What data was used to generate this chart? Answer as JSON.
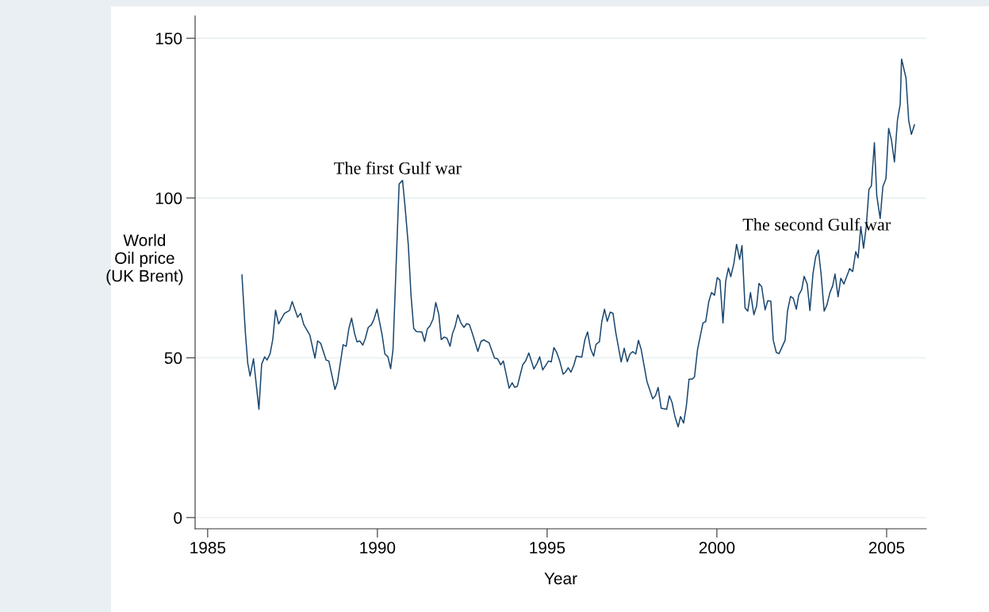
{
  "chart_data": {
    "type": "line",
    "xlabel": "Year",
    "ylabel": "World\nOil price\n(UK Brent)",
    "annotations": [
      "The first Gulf war",
      "The second Gulf war"
    ],
    "xlim": [
      1984.63,
      2006.17
    ],
    "xticks": [
      1985,
      1990,
      1995,
      2000,
      2005
    ],
    "ylim": [
      -3.5,
      157
    ],
    "yticks": [
      0,
      50,
      100,
      150
    ],
    "grid": "y",
    "series": [
      {
        "color": "#1a476f",
        "x": [
          1986.01,
          1986.11,
          1986.18,
          1986.25,
          1986.35,
          1986.51,
          1986.59,
          1986.68,
          1986.75,
          1986.84,
          1986.92,
          1987.0,
          1987.09,
          1987.26,
          1987.41,
          1987.49,
          1987.65,
          1987.74,
          1987.83,
          1988.01,
          1988.16,
          1988.24,
          1988.33,
          1988.49,
          1988.57,
          1988.75,
          1988.82,
          1988.99,
          1989.08,
          1989.16,
          1989.24,
          1989.33,
          1989.4,
          1989.48,
          1989.57,
          1989.64,
          1989.73,
          1989.82,
          1989.9,
          1989.99,
          1990.14,
          1990.22,
          1990.31,
          1990.39,
          1990.46,
          1990.64,
          1990.74,
          1990.81,
          1990.91,
          1990.99,
          1991.07,
          1991.15,
          1991.31,
          1991.39,
          1991.47,
          1991.55,
          1991.64,
          1991.72,
          1991.81,
          1991.88,
          1991.97,
          1992.05,
          1992.14,
          1992.21,
          1992.29,
          1992.37,
          1992.46,
          1992.55,
          1992.63,
          1992.71,
          1992.8,
          1992.96,
          1993.05,
          1993.13,
          1993.29,
          1993.45,
          1993.54,
          1993.63,
          1993.71,
          1993.88,
          1993.97,
          1994.04,
          1994.12,
          1994.28,
          1994.37,
          1994.46,
          1994.61,
          1994.7,
          1994.78,
          1994.87,
          1995.04,
          1995.12,
          1995.2,
          1995.28,
          1995.37,
          1995.47,
          1995.54,
          1995.62,
          1995.7,
          1995.79,
          1995.86,
          1996.02,
          1996.11,
          1996.19,
          1996.28,
          1996.37,
          1996.44,
          1996.54,
          1996.61,
          1996.69,
          1996.77,
          1996.86,
          1996.94,
          1997.02,
          1997.18,
          1997.27,
          1997.36,
          1997.44,
          1997.52,
          1997.61,
          1997.69,
          1997.77,
          1997.94,
          1998.11,
          1998.19,
          1998.27,
          1998.36,
          1998.52,
          1998.6,
          1998.68,
          1998.76,
          1998.86,
          1998.93,
          1999.02,
          1999.1,
          1999.18,
          1999.27,
          1999.34,
          1999.43,
          1999.59,
          1999.67,
          1999.76,
          1999.84,
          1999.93,
          2000.01,
          2000.09,
          2000.18,
          2000.26,
          2000.34,
          2000.41,
          2000.5,
          2000.58,
          2000.67,
          2000.74,
          2000.83,
          2000.91,
          2000.99,
          2001.09,
          2001.17,
          2001.24,
          2001.32,
          2001.42,
          2001.5,
          2001.59,
          2001.66,
          2001.75,
          2001.83,
          2002.01,
          2002.08,
          2002.17,
          2002.25,
          2002.34,
          2002.41,
          2002.5,
          2002.57,
          2002.66,
          2002.74,
          2002.83,
          2002.91,
          2002.99,
          2003.07,
          2003.16,
          2003.24,
          2003.33,
          2003.41,
          2003.48,
          2003.57,
          2003.65,
          2003.74,
          2003.88,
          2003.91,
          2004.0,
          2004.09,
          2004.16,
          2004.24,
          2004.32,
          2004.4,
          2004.48,
          2004.55,
          2004.64,
          2004.71,
          2004.81,
          2004.89,
          2004.98,
          2005.06,
          2005.14,
          2005.23,
          2005.32,
          2005.4,
          2005.44,
          2005.57,
          2005.65,
          2005.73,
          2005.82
        ],
        "values": [
          75.9,
          58.0,
          48.4,
          44.3,
          49.7,
          33.9,
          48.0,
          50.3,
          49.3,
          51.3,
          55.9,
          64.9,
          60.6,
          63.9,
          64.8,
          67.6,
          62.7,
          63.9,
          60.4,
          57.1,
          49.9,
          55.3,
          54.5,
          49.3,
          49.0,
          40.1,
          42.2,
          54.1,
          53.6,
          59.2,
          62.4,
          57.5,
          55.0,
          55.3,
          54.0,
          55.9,
          59.5,
          60.3,
          62.1,
          65.2,
          57.1,
          51.2,
          50.3,
          46.6,
          52.6,
          104.4,
          105.5,
          97.8,
          85.3,
          69.6,
          59.2,
          58.2,
          58.1,
          55.1,
          59.0,
          60.0,
          62.1,
          67.3,
          63.5,
          55.7,
          56.5,
          56.1,
          53.6,
          57.5,
          59.8,
          63.5,
          60.9,
          59.5,
          60.7,
          60.4,
          57.5,
          52.0,
          55.1,
          55.6,
          54.7,
          49.9,
          49.7,
          47.8,
          49.0,
          40.5,
          42.2,
          40.8,
          41.0,
          47.8,
          49.1,
          51.5,
          46.5,
          48.2,
          50.3,
          46.2,
          49.0,
          48.7,
          53.2,
          51.7,
          49.0,
          44.9,
          45.5,
          46.9,
          45.5,
          47.8,
          50.5,
          50.2,
          55.6,
          58.1,
          52.8,
          50.5,
          54.2,
          55.0,
          61.3,
          65.2,
          61.4,
          64.3,
          63.9,
          58.0,
          48.7,
          53.0,
          48.8,
          51.2,
          51.9,
          51.2,
          55.5,
          52.6,
          42.6,
          37.2,
          38.1,
          40.7,
          34.2,
          33.9,
          38.1,
          36.0,
          31.8,
          28.4,
          31.6,
          29.6,
          34.8,
          43.3,
          43.3,
          44.0,
          52.6,
          60.9,
          61.3,
          67.5,
          70.4,
          69.6,
          75.1,
          74.3,
          60.9,
          74.0,
          78.1,
          75.4,
          79.5,
          85.5,
          80.8,
          85.1,
          65.6,
          64.6,
          70.4,
          63.5,
          66.2,
          73.3,
          72.2,
          65.0,
          67.9,
          67.7,
          55.5,
          51.7,
          51.3,
          55.5,
          64.6,
          69.2,
          68.6,
          65.2,
          69.6,
          71.4,
          75.5,
          73.1,
          64.8,
          76.2,
          81.6,
          83.7,
          76.2,
          64.6,
          66.5,
          70.4,
          72.5,
          76.2,
          69.1,
          74.9,
          73.1,
          77.0,
          77.9,
          77.0,
          83.2,
          81.3,
          91.1,
          84.3,
          91.1,
          102.7,
          103.8,
          117.3,
          100.7,
          93.6,
          103.6,
          106.0,
          121.8,
          118.3,
          111.3,
          124.5,
          129.4,
          143.5,
          137.6,
          124.3,
          119.9,
          122.9
        ]
      }
    ]
  }
}
